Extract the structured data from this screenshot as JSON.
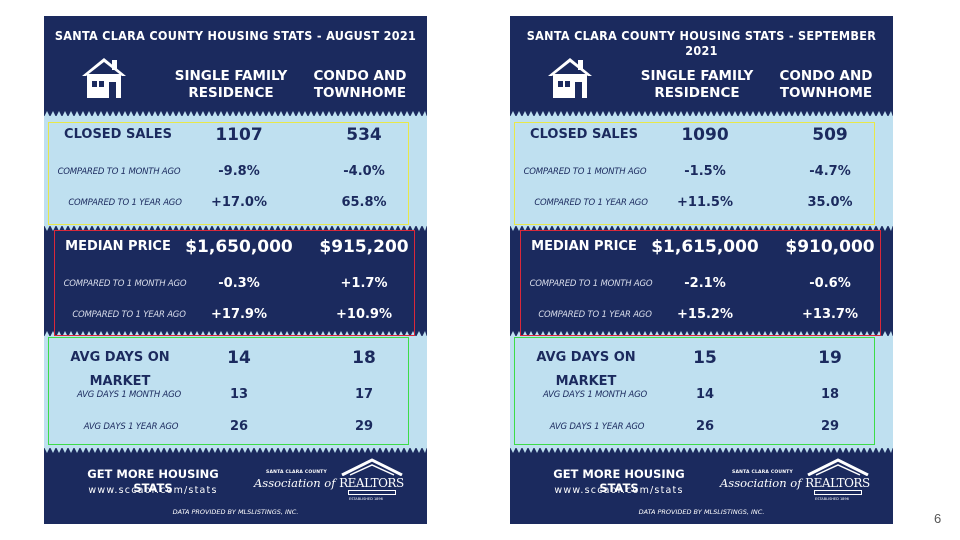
{
  "cards": [
    {
      "title": "SANTA CLARA COUNTY HOUSING STATS - AUGUST 2021",
      "col_sfr": "SINGLE FAMILY\nRESIDENCE",
      "col_condo": "CONDO AND\nTOWNHOME",
      "closed_sales": {
        "label": "CLOSED SALES",
        "sfr": "1107",
        "condo": "534",
        "month_label": "COMPARED TO 1 MONTH AGO",
        "month_sfr": "-9.8%",
        "month_condo": "-4.0%",
        "year_label": "COMPARED TO 1 YEAR AGO",
        "year_sfr": "+17.0%",
        "year_condo": "65.8%"
      },
      "median_price": {
        "label": "MEDIAN PRICE",
        "sfr": "$1,650,000",
        "condo": "$915,200",
        "month_label": "COMPARED TO 1 MONTH AGO",
        "month_sfr": "-0.3%",
        "month_condo": "+1.7%",
        "year_label": "COMPARED TO 1 YEAR AGO",
        "year_sfr": "+17.9%",
        "year_condo": "+10.9%"
      },
      "avg_days": {
        "label": "AVG DAYS ON MARKET",
        "sfr": "14",
        "condo": "18",
        "month_label": "AVG DAYS 1 MONTH AGO",
        "month_sfr": "13",
        "month_condo": "17",
        "year_label": "AVG DAYS 1 YEAR AGO",
        "year_sfr": "26",
        "year_condo": "29"
      },
      "footer_head": "GET MORE HOUSING STATS",
      "footer_url": "www.sccaor.com/stats",
      "logo_small": "SANTA CLARA COUNTY",
      "logo_assoc": "Association of",
      "logo_realtors": "REALTORS",
      "logo_est": "ESTABLISHED 1896",
      "data_credit": "DATA PROVIDED BY MLSLISTINGS, INC."
    },
    {
      "title": "SANTA CLARA COUNTY HOUSING STATS - SEPTEMBER 2021",
      "col_sfr": "SINGLE FAMILY\nRESIDENCE",
      "col_condo": "CONDO AND\nTOWNHOME",
      "closed_sales": {
        "label": "CLOSED SALES",
        "sfr": "1090",
        "condo": "509",
        "month_label": "COMPARED TO 1 MONTH AGO",
        "month_sfr": "-1.5%",
        "month_condo": "-4.7%",
        "year_label": "COMPARED TO 1 YEAR AGO",
        "year_sfr": "+11.5%",
        "year_condo": "35.0%"
      },
      "median_price": {
        "label": "MEDIAN PRICE",
        "sfr": "$1,615,000",
        "condo": "$910,000",
        "month_label": "COMPARED TO 1 MONTH AGO",
        "month_sfr": "-2.1%",
        "month_condo": "-0.6%",
        "year_label": "COMPARED TO 1 YEAR AGO",
        "year_sfr": "+15.2%",
        "year_condo": "+13.7%"
      },
      "avg_days": {
        "label": "AVG DAYS ON MARKET",
        "sfr": "15",
        "condo": "19",
        "month_label": "AVG DAYS 1 MONTH AGO",
        "month_sfr": "14",
        "month_condo": "18",
        "year_label": "AVG DAYS 1 YEAR AGO",
        "year_sfr": "26",
        "year_condo": "29"
      },
      "footer_head": "GET MORE HOUSING STATS",
      "footer_url": "www.sccaor.com/stats",
      "logo_small": "SANTA CLARA COUNTY",
      "logo_assoc": "Association of",
      "logo_realtors": "REALTORS",
      "logo_est": "ESTABLISHED 1896",
      "data_credit": "DATA PROVIDED BY MLSLISTINGS, INC."
    }
  ],
  "colors": {
    "navy": "#1b2a5e",
    "light_blue": "#bfe0f0",
    "outline_yellow": "#e8e84a",
    "outline_red": "#d9283a",
    "outline_green": "#3ddc48"
  },
  "icons": [
    "house-icon",
    "realtor-roof-logo"
  ],
  "page_number": "6"
}
